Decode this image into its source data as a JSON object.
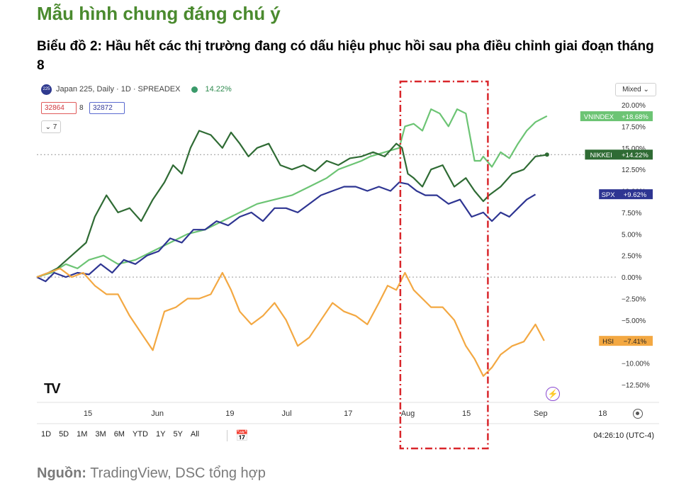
{
  "section_title": "Mẫu hình chung đáng chú ý",
  "chart_title": "Biểu đồ 2: Hầu hết các thị trường đang có dấu hiệu phục hồi sau pha điều chỉnh giai đoạn tháng 8",
  "header": {
    "symbol_badge": "225",
    "symbol_text": "Japan 225, Daily · 1D · SPREADEX",
    "change": "14.22%",
    "bid": "32864",
    "spread": "8",
    "ask": "32872",
    "indicator_count": "7",
    "scale_mode": "Mixed"
  },
  "toolbar": {
    "timeframes": [
      "1D",
      "5D",
      "1M",
      "3M",
      "6M",
      "YTD",
      "1Y",
      "5Y",
      "All"
    ],
    "clock": "04:26:10 (UTC-4)"
  },
  "source": {
    "label": "Nguồn:",
    "text": "TradingView, DSC tổng hợp"
  },
  "colors": {
    "vnindex": "#6cc474",
    "nikkei": "#2f6b34",
    "spx": "#2e3592",
    "hsi": "#f3a842",
    "highlight": "#d9262b"
  },
  "chart_data": {
    "type": "line",
    "ylim": [
      -14.5,
      20.5
    ],
    "xlim": [
      0,
      100
    ],
    "y_ticks": [
      "20.00%",
      "17.50%",
      "15.00%",
      "12.50%",
      "10.00%",
      "7.50%",
      "5.00%",
      "2.50%",
      "0.00%",
      "−2.50%",
      "−5.00%",
      "−7.50%",
      "−10.00%",
      "−12.50%"
    ],
    "y_tick_values": [
      20,
      17.5,
      15,
      12.5,
      10,
      7.5,
      5,
      2.5,
      0,
      -2.5,
      -5,
      -7.5,
      -10,
      -12.5
    ],
    "x_ticks": [
      "15",
      "Jun",
      "19",
      "Jul",
      "17",
      "Aug",
      "15",
      "Sep",
      "18"
    ],
    "x_tick_positions": [
      8.8,
      20.8,
      33.3,
      43.1,
      53.7,
      64.0,
      74.1,
      86.9,
      97.6
    ],
    "highlight_range": [
      62.7,
      77.8
    ],
    "series": [
      {
        "name": "VNINDEX",
        "label": "+18.68%",
        "last": 18.68,
        "x": [
          0,
          2.5,
          5,
          7,
          9,
          11.5,
          14,
          17,
          20,
          23,
          26,
          29,
          32,
          35,
          38,
          41,
          44,
          47,
          50,
          52,
          54,
          56,
          57.5,
          60,
          62.5,
          63.5,
          65,
          66.5,
          68,
          69.5,
          71,
          72.5,
          74,
          75.5,
          76.5,
          77,
          78.5,
          80,
          81.5,
          83,
          84.5,
          86,
          88
        ],
        "y": [
          0,
          0.5,
          1.5,
          1.0,
          2.0,
          2.5,
          1.5,
          2.0,
          3.0,
          4.0,
          5.0,
          5.5,
          6.5,
          7.5,
          8.5,
          9.0,
          9.5,
          10.5,
          11.5,
          12.5,
          13.0,
          13.5,
          14.0,
          14.5,
          15.0,
          17.5,
          17.8,
          17.0,
          19.5,
          19.0,
          17.5,
          19.5,
          19.0,
          13.5,
          13.5,
          14.0,
          12.8,
          14.5,
          13.8,
          15.5,
          17.0,
          18.0,
          18.7
        ]
      },
      {
        "name": "NIKKEI",
        "label": "+14.22%",
        "last": 14.22,
        "x": [
          0,
          2,
          3.5,
          6,
          8.5,
          10,
          12,
          14,
          16,
          18,
          20,
          22,
          23.5,
          25,
          26.5,
          28,
          30,
          32,
          33.5,
          35,
          36.5,
          38,
          40,
          42,
          44,
          46,
          48,
          50,
          52,
          54,
          56,
          58,
          60,
          62,
          63,
          64,
          65,
          66.5,
          68,
          70,
          72,
          74,
          75.5,
          77,
          78,
          80,
          82,
          84,
          86,
          88
        ],
        "y": [
          0,
          0.5,
          1.0,
          2.5,
          4.0,
          7.0,
          9.5,
          7.5,
          8.0,
          6.5,
          9.0,
          11.0,
          13.0,
          12.0,
          15.0,
          17.0,
          16.5,
          15.0,
          16.8,
          15.5,
          14.0,
          15.0,
          15.5,
          13.0,
          12.5,
          13.0,
          12.3,
          13.5,
          13.0,
          13.8,
          14.0,
          14.5,
          14.0,
          15.5,
          15.0,
          12.0,
          11.5,
          10.5,
          12.5,
          13.0,
          10.5,
          11.5,
          10.0,
          8.8,
          9.5,
          10.5,
          12.0,
          12.5,
          14.0,
          14.2
        ]
      },
      {
        "name": "SPX",
        "label": "+9.62%",
        "last": 9.62,
        "x": [
          0,
          1.5,
          3,
          5,
          7,
          9,
          11,
          13,
          15,
          17,
          19,
          21,
          23,
          25,
          27,
          29,
          31,
          33,
          35,
          37,
          39,
          41,
          43,
          45,
          47,
          49,
          51,
          53,
          55,
          57,
          59,
          61,
          62.5,
          64,
          65.5,
          67,
          69,
          71,
          73,
          75,
          77,
          78.5,
          80,
          81.5,
          83,
          84.5,
          86
        ],
        "y": [
          0,
          -0.5,
          0.5,
          0,
          0.5,
          0.3,
          1.5,
          0.5,
          2.0,
          1.5,
          2.5,
          3.0,
          4.5,
          4.0,
          5.5,
          5.5,
          6.5,
          6.0,
          7.0,
          7.5,
          6.5,
          8.0,
          8.0,
          7.5,
          8.5,
          9.5,
          10.0,
          10.5,
          10.5,
          10.0,
          10.5,
          10.0,
          11.0,
          10.8,
          10.0,
          9.5,
          9.5,
          8.5,
          9.0,
          7.0,
          7.5,
          6.5,
          7.5,
          7.0,
          8.0,
          9.0,
          9.6
        ]
      },
      {
        "name": "HSI",
        "label": "−7.41%",
        "last": -7.41,
        "x": [
          0,
          2,
          4,
          6,
          8,
          10,
          12,
          14,
          16,
          18,
          20,
          22,
          24,
          26,
          28,
          30,
          32,
          33.5,
          35,
          37,
          39,
          41,
          43,
          45,
          47,
          49,
          51,
          53,
          55,
          57,
          59,
          60.5,
          62,
          63.5,
          65,
          66.5,
          68,
          70,
          72,
          74,
          75.5,
          77,
          78.5,
          80,
          82,
          84,
          86,
          87.5
        ],
        "y": [
          0,
          0.5,
          1.0,
          0,
          0.5,
          -1.0,
          -2.0,
          -2.0,
          -4.5,
          -6.5,
          -8.5,
          -4.0,
          -3.5,
          -2.5,
          -2.5,
          -2.0,
          0.5,
          -1.5,
          -4.0,
          -5.5,
          -4.5,
          -3.0,
          -5.0,
          -8.0,
          -7.0,
          -5.0,
          -3.0,
          -4.0,
          -4.5,
          -5.5,
          -3.0,
          -1.0,
          -1.5,
          0.5,
          -1.5,
          -2.5,
          -3.5,
          -3.5,
          -5.0,
          -8.0,
          -9.5,
          -11.5,
          -10.5,
          -9.0,
          -8.0,
          -7.5,
          -5.5,
          -7.4
        ]
      }
    ]
  }
}
